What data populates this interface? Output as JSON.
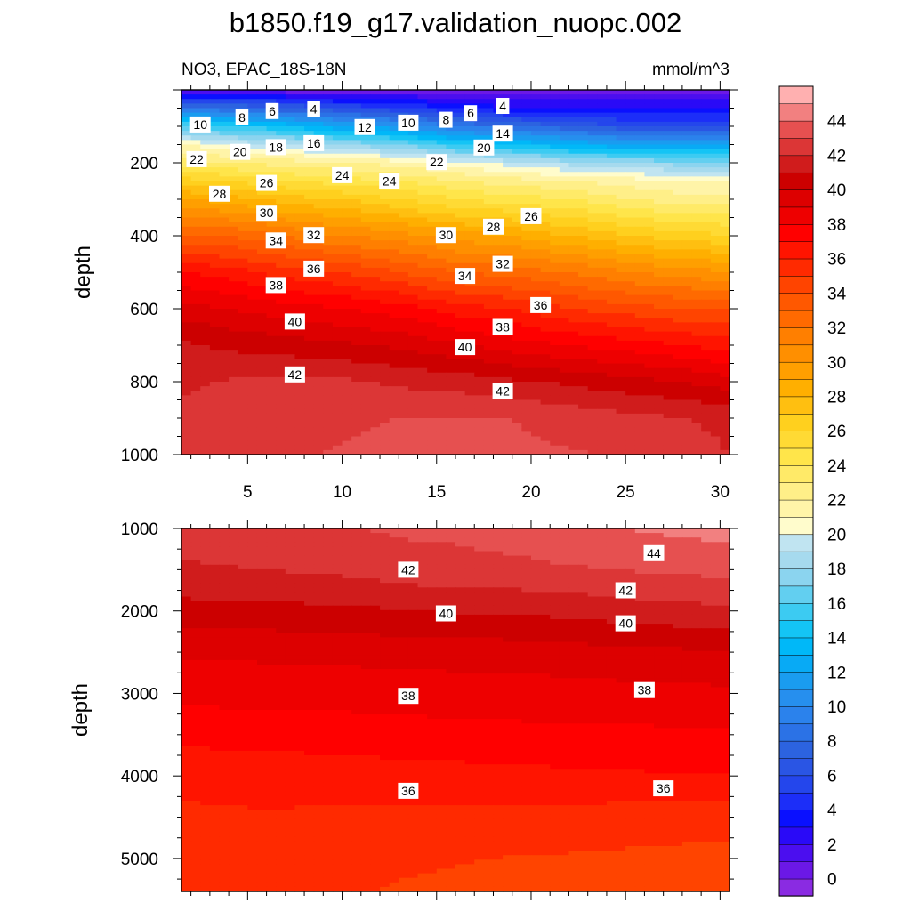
{
  "title": "b1850.f19_g17.validation_nuopc.002",
  "chart_data": [
    {
      "type": "heatmap",
      "title": "b1850.f19_g17.validation_nuopc.002",
      "subtitle": "NO3, EPAC_18S-18N",
      "units": "mmol/m^3",
      "xlabel": "",
      "ylabel": "depth",
      "xlim": [
        1.5,
        30.5
      ],
      "ylim": [
        1000,
        0
      ],
      "xticks": [
        "5",
        "10",
        "15",
        "20",
        "25",
        "30"
      ],
      "yticks": [
        "200",
        "400",
        "600",
        "800",
        "1000"
      ],
      "x": [
        1.5,
        4,
        7,
        10,
        13,
        16,
        19,
        22,
        25,
        28,
        30.5
      ],
      "depth": [
        0,
        25,
        50,
        100,
        150,
        200,
        250,
        300,
        400,
        500,
        600,
        700,
        800,
        900,
        1000
      ],
      "values": [
        [
          0,
          0,
          0,
          0,
          0,
          0,
          0,
          0,
          0,
          0,
          0
        ],
        [
          5,
          5,
          4,
          3,
          3,
          2,
          2,
          2,
          2,
          2,
          2
        ],
        [
          9,
          8,
          7,
          6,
          5,
          4,
          3,
          3,
          3,
          3,
          3
        ],
        [
          16,
          15,
          14,
          12,
          11,
          9,
          8,
          7,
          6,
          6,
          6
        ],
        [
          21,
          20,
          19,
          18,
          17,
          15,
          14,
          13,
          12,
          12,
          12
        ],
        [
          23.5,
          23,
          22.5,
          22,
          21.5,
          20.5,
          19.5,
          18.5,
          18,
          17.5,
          17.5
        ],
        [
          26.5,
          26,
          25,
          24.5,
          24,
          23,
          22.5,
          22,
          21.5,
          21,
          21
        ],
        [
          29,
          28.5,
          27.5,
          27,
          26,
          25,
          24.5,
          24,
          23,
          22.5,
          22.5
        ],
        [
          33,
          33,
          32,
          31,
          30.5,
          29.5,
          29,
          28,
          27,
          26.5,
          26
        ],
        [
          37,
          36.5,
          35.5,
          35,
          34,
          33,
          32.5,
          32,
          31,
          30.5,
          30
        ],
        [
          39.5,
          39,
          38.5,
          38,
          37.5,
          36.5,
          36,
          35,
          34.5,
          34,
          34
        ],
        [
          41.2,
          40.8,
          40.5,
          40.2,
          39.8,
          39.2,
          38.5,
          38,
          37.5,
          37,
          36.5
        ],
        [
          41.8,
          42.1,
          42.2,
          42.2,
          41.8,
          41.6,
          41.2,
          40.8,
          40.4,
          40,
          39.5
        ],
        [
          42.2,
          42.5,
          42.6,
          42.8,
          43,
          43.1,
          43,
          42.6,
          42.3,
          42,
          41.8
        ],
        [
          42.4,
          42.7,
          42.9,
          43.1,
          43.3,
          43.3,
          43.2,
          43.1,
          42.9,
          42.4,
          42
        ]
      ],
      "contour_labels": [
        {
          "value": "10",
          "x": 2.5,
          "y": 95
        },
        {
          "value": "8",
          "x": 4.7,
          "y": 75
        },
        {
          "value": "6",
          "x": 6.3,
          "y": 58
        },
        {
          "value": "4",
          "x": 8.5,
          "y": 52
        },
        {
          "value": "12",
          "x": 11.2,
          "y": 102
        },
        {
          "value": "10",
          "x": 13.5,
          "y": 90
        },
        {
          "value": "8",
          "x": 15.5,
          "y": 82
        },
        {
          "value": "6",
          "x": 16.8,
          "y": 64
        },
        {
          "value": "4",
          "x": 18.5,
          "y": 44
        },
        {
          "value": "14",
          "x": 18.5,
          "y": 120
        },
        {
          "value": "22",
          "x": 2.3,
          "y": 190
        },
        {
          "value": "20",
          "x": 4.6,
          "y": 170
        },
        {
          "value": "18",
          "x": 6.5,
          "y": 157
        },
        {
          "value": "16",
          "x": 8.5,
          "y": 146
        },
        {
          "value": "20",
          "x": 17.5,
          "y": 158
        },
        {
          "value": "22",
          "x": 15,
          "y": 198
        },
        {
          "value": "24",
          "x": 10,
          "y": 234
        },
        {
          "value": "24",
          "x": 12.5,
          "y": 250
        },
        {
          "value": "26",
          "x": 6,
          "y": 255
        },
        {
          "value": "28",
          "x": 3.5,
          "y": 285
        },
        {
          "value": "30",
          "x": 6,
          "y": 337
        },
        {
          "value": "26",
          "x": 20,
          "y": 346
        },
        {
          "value": "28",
          "x": 18,
          "y": 375
        },
        {
          "value": "30",
          "x": 15.5,
          "y": 398
        },
        {
          "value": "34",
          "x": 6.5,
          "y": 413
        },
        {
          "value": "32",
          "x": 8.5,
          "y": 398
        },
        {
          "value": "32",
          "x": 18.5,
          "y": 477
        },
        {
          "value": "34",
          "x": 16.5,
          "y": 510
        },
        {
          "value": "36",
          "x": 8.5,
          "y": 490
        },
        {
          "value": "38",
          "x": 6.5,
          "y": 535
        },
        {
          "value": "36",
          "x": 20.5,
          "y": 590
        },
        {
          "value": "38",
          "x": 18.5,
          "y": 650
        },
        {
          "value": "40",
          "x": 7.5,
          "y": 635
        },
        {
          "value": "40",
          "x": 16.5,
          "y": 705
        },
        {
          "value": "42",
          "x": 7.5,
          "y": 780
        },
        {
          "value": "42",
          "x": 18.5,
          "y": 825
        }
      ]
    },
    {
      "type": "heatmap",
      "xlabel": "",
      "ylabel": "depth",
      "xlim": [
        1.5,
        30.5
      ],
      "ylim": [
        5400,
        1000
      ],
      "yticks": [
        "1000",
        "2000",
        "3000",
        "4000",
        "5000"
      ],
      "x": [
        1.5,
        6,
        10,
        14,
        18,
        22,
        26,
        30.5
      ],
      "depth": [
        1000,
        1200,
        1500,
        2000,
        2500,
        3000,
        3500,
        4000,
        4500,
        5000,
        5400
      ],
      "values": [
        [
          42.3,
          42.7,
          42.9,
          43.3,
          43.3,
          43.7,
          44.1,
          44.3
        ],
        [
          42.1,
          42.4,
          42.6,
          42.9,
          43.1,
          43.4,
          43.7,
          44
        ],
        [
          41.9,
          42,
          42.2,
          42.6,
          42.7,
          42.9,
          43.1,
          43.3
        ],
        [
          40.6,
          40.7,
          40.8,
          41,
          41.1,
          41.3,
          41.6,
          41.8
        ],
        [
          39.2,
          39.2,
          39.3,
          39.4,
          39.5,
          39.6,
          39.8,
          39.9
        ],
        [
          38.3,
          38.4,
          38.4,
          38.5,
          38.5,
          38.6,
          38.7,
          38.8
        ],
        [
          37.3,
          37.4,
          37.5,
          37.6,
          37.7,
          37.8,
          37.8,
          37.9
        ],
        [
          36.3,
          36.4,
          36.5,
          36.6,
          36.7,
          36.8,
          36.9,
          37
        ],
        [
          35.8,
          35.9,
          35.8,
          35.7,
          35.7,
          35.6,
          35.5,
          35.4
        ],
        [
          35.5,
          35.5,
          35.4,
          35.2,
          35,
          34.9,
          34.8,
          34.7
        ],
        [
          35.3,
          35.3,
          35.2,
          34.8,
          34.6,
          34.5,
          34.4,
          34.3
        ]
      ],
      "contour_labels": [
        {
          "value": "42",
          "x": 13.5,
          "y": 1500
        },
        {
          "value": "44",
          "x": 26.5,
          "y": 1300
        },
        {
          "value": "42",
          "x": 25,
          "y": 1750
        },
        {
          "value": "40",
          "x": 15.5,
          "y": 2030
        },
        {
          "value": "40",
          "x": 25,
          "y": 2150
        },
        {
          "value": "38",
          "x": 13.5,
          "y": 3030
        },
        {
          "value": "38",
          "x": 26,
          "y": 2960
        },
        {
          "value": "36",
          "x": 13.5,
          "y": 4180
        },
        {
          "value": "36",
          "x": 27,
          "y": 4150
        }
      ]
    }
  ],
  "colorbar": {
    "labels": [
      "0",
      "2",
      "4",
      "6",
      "8",
      "10",
      "12",
      "14",
      "16",
      "18",
      "20",
      "22",
      "24",
      "26",
      "28",
      "30",
      "32",
      "34",
      "36",
      "38",
      "40",
      "42",
      "44"
    ],
    "levels": [
      -1,
      0,
      1,
      2,
      3,
      4,
      5,
      6,
      7,
      8,
      9,
      10,
      11,
      12,
      13,
      14,
      15,
      16,
      17,
      18,
      19,
      20,
      21,
      22,
      23,
      24,
      25,
      26,
      27,
      28,
      29,
      30,
      31,
      32,
      33,
      34,
      35,
      36,
      37,
      38,
      39,
      40,
      41,
      42,
      43,
      44,
      45
    ],
    "colors": [
      "#8a2be2",
      "#6b18e6",
      "#4b0eef",
      "#2a0af7",
      "#0a10ff",
      "#1c2ef8",
      "#2446ec",
      "#2a55e4",
      "#2c63e0",
      "#2b72e6",
      "#2b82ec",
      "#268fee",
      "#1a9cf0",
      "#08aaf5",
      "#00b8f8",
      "#14c4f5",
      "#3ccbf2",
      "#62cff0",
      "#8bd4ef",
      "#a6daee",
      "#c0e4f1",
      "#fffccc",
      "#fff4a8",
      "#ffef88",
      "#ffea68",
      "#ffe54a",
      "#ffda34",
      "#ffd01e",
      "#ffbf10",
      "#ffaf00",
      "#ff9f00",
      "#ff8f00",
      "#ff7f00",
      "#ff6a00",
      "#ff5800",
      "#ff4400",
      "#ff2a00",
      "#ff1400",
      "#ff0000",
      "#ee0000",
      "#dd0000",
      "#cc0000",
      "#d01c1c",
      "#dc3636",
      "#e65050",
      "#f28080",
      "#ffb0b0"
    ]
  }
}
